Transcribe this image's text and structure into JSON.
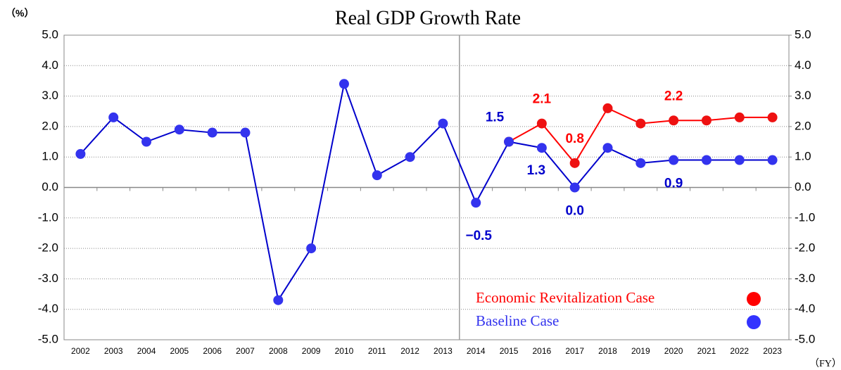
{
  "chart_data": {
    "type": "line",
    "title": "Real GDP Growth Rate",
    "y_axis_label": "（%）",
    "x_axis_label": "（FY）",
    "categories": [
      "2002",
      "2003",
      "2004",
      "2005",
      "2006",
      "2007",
      "2008",
      "2009",
      "2010",
      "2011",
      "2012",
      "2013",
      "2014",
      "2015",
      "2016",
      "2017",
      "2018",
      "2019",
      "2020",
      "2021",
      "2022",
      "2023"
    ],
    "series": [
      {
        "name": "Economic Revitalization Case",
        "color": "#ff0000",
        "values": [
          null,
          null,
          null,
          null,
          null,
          null,
          null,
          null,
          null,
          null,
          null,
          null,
          null,
          1.5,
          2.1,
          0.8,
          2.6,
          2.1,
          2.2,
          2.2,
          2.3,
          2.3
        ],
        "value_labels": [
          null,
          null,
          null,
          null,
          null,
          null,
          null,
          null,
          null,
          null,
          null,
          null,
          null,
          null,
          "2.1",
          "0.8",
          null,
          null,
          "2.2",
          null,
          null,
          null
        ]
      },
      {
        "name": "Baseline Case",
        "color": "#0000cc",
        "values": [
          1.1,
          2.3,
          1.5,
          1.9,
          1.8,
          1.8,
          -3.7,
          -2.0,
          3.4,
          0.4,
          1.0,
          2.1,
          -0.5,
          1.5,
          1.3,
          0.0,
          1.3,
          0.8,
          0.9,
          0.9,
          0.9,
          0.9
        ],
        "value_labels": [
          null,
          null,
          null,
          null,
          null,
          null,
          null,
          null,
          null,
          null,
          null,
          null,
          "−0.5",
          "1.5",
          "1.3",
          "0.0",
          null,
          null,
          "0.9",
          null,
          null,
          null
        ]
      }
    ],
    "ylim": [
      -5,
      5
    ],
    "yticks": [
      {
        "value": -5,
        "label": "-5.0"
      },
      {
        "value": -4,
        "label": "-4.0"
      },
      {
        "value": -3,
        "label": "-3.0"
      },
      {
        "value": -2,
        "label": "-2.0"
      },
      {
        "value": -1,
        "label": "-1.0"
      },
      {
        "value": 0,
        "label": "0.0"
      },
      {
        "value": 1,
        "label": "1.0"
      },
      {
        "value": 2,
        "label": "2.0"
      },
      {
        "value": 3,
        "label": "3.0"
      },
      {
        "value": 4,
        "label": "4.0"
      },
      {
        "value": 5,
        "label": "5.0"
      }
    ],
    "y2lim": [
      -5,
      5
    ],
    "y2ticks": [
      {
        "value": -5,
        "label": "-5.0"
      },
      {
        "value": -4,
        "label": "-4.0"
      },
      {
        "value": -3,
        "label": "-3.0"
      },
      {
        "value": -2,
        "label": "-2.0"
      },
      {
        "value": -1,
        "label": "-1.0"
      },
      {
        "value": 0,
        "label": "0.0"
      },
      {
        "value": 1,
        "label": "1.0"
      },
      {
        "value": 2,
        "label": "2.0"
      },
      {
        "value": 3,
        "label": "3.0"
      },
      {
        "value": 4,
        "label": "4.0"
      },
      {
        "value": 5,
        "label": "5.0"
      }
    ],
    "grid": true,
    "legend": "lower right"
  }
}
